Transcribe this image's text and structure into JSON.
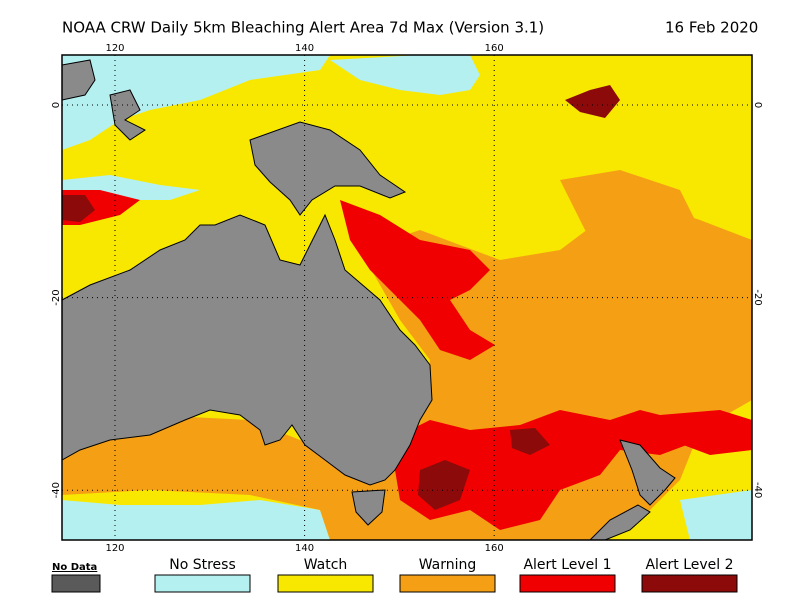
{
  "title": "NOAA CRW Daily 5km Bleaching Alert Area 7d Max (Version 3.1)",
  "date": "16 Feb 2020",
  "longitude_ticks": [
    120,
    140,
    160
  ],
  "latitude_ticks": [
    0,
    -20,
    -40
  ],
  "legend": [
    {
      "label": "No Data",
      "color": "#5a5a5a"
    },
    {
      "label": "No Stress",
      "color": "#b4f0f0"
    },
    {
      "label": "Watch",
      "color": "#f8e800"
    },
    {
      "label": "Warning",
      "color": "#f5a014"
    },
    {
      "label": "Alert Level 1",
      "color": "#f00000"
    },
    {
      "label": "Alert Level 2",
      "color": "#8c0a0a"
    }
  ]
}
